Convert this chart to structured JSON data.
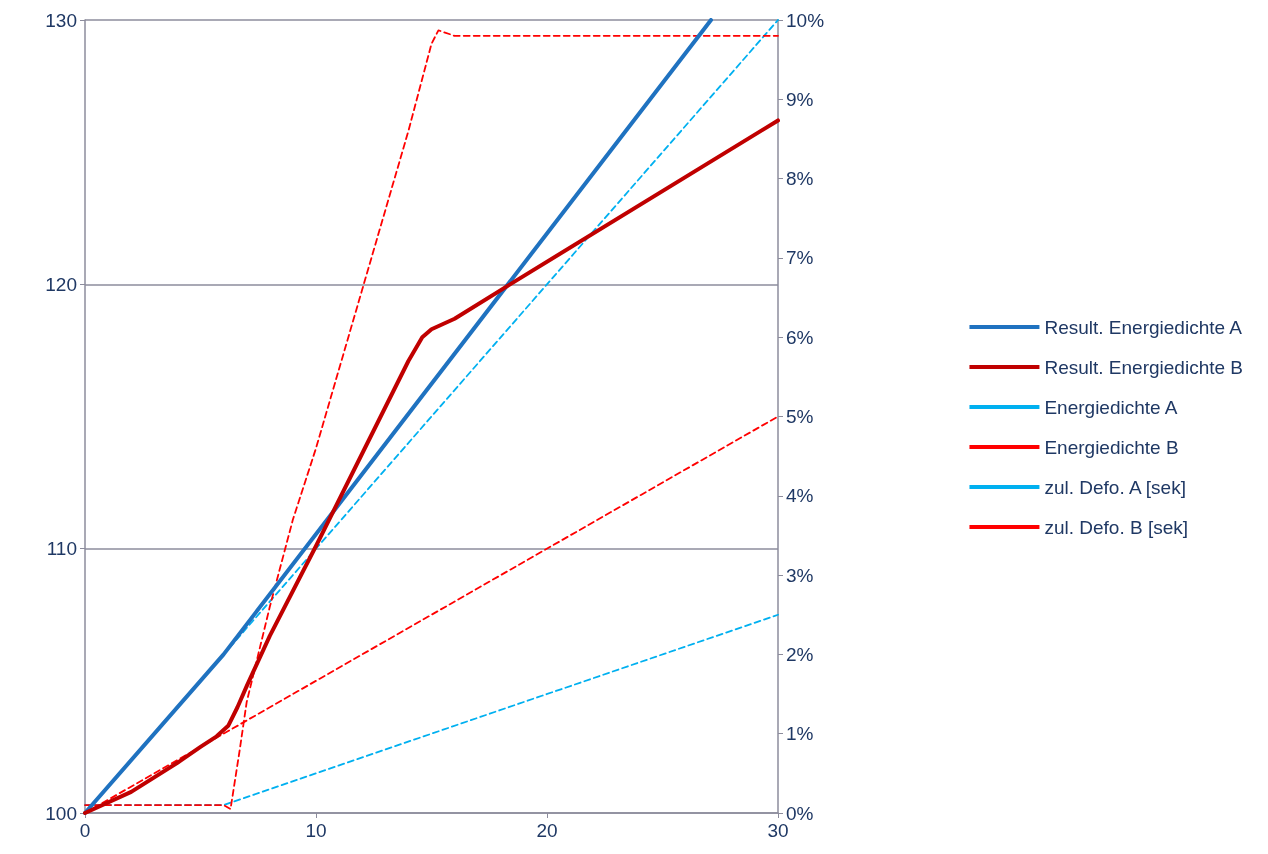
{
  "chart_data": {
    "type": "line",
    "xlim": [
      0,
      30
    ],
    "xticks": [
      0,
      10,
      20,
      30
    ],
    "ylim": [
      100,
      130
    ],
    "yticks": [
      100,
      110,
      120,
      130
    ],
    "y2lim": [
      0,
      10
    ],
    "y2ticks": [
      {
        "value": 0,
        "label": "0%"
      },
      {
        "value": 1,
        "label": "1%"
      },
      {
        "value": 2,
        "label": "2%"
      },
      {
        "value": 3,
        "label": "3%"
      },
      {
        "value": 4,
        "label": "4%"
      },
      {
        "value": 5,
        "label": "5%"
      },
      {
        "value": 6,
        "label": "6%"
      },
      {
        "value": 7,
        "label": "7%"
      },
      {
        "value": 8,
        "label": "8%"
      },
      {
        "value": 9,
        "label": "9%"
      },
      {
        "value": 10,
        "label": "10%"
      }
    ],
    "grid": "y",
    "legend": "right",
    "marker": "none",
    "series": [
      {
        "name": "Result. Energiedichte A",
        "color": "#1f72c0",
        "line_style": "solid",
        "x": [
          0,
          6,
          27.1
        ],
        "values": [
          100,
          106,
          130
        ]
      },
      {
        "name": "Result. Energiedichte B",
        "color": "#c00000",
        "line_style": "solid",
        "x": [
          0,
          2,
          4,
          5,
          5.7,
          6.2,
          6.6,
          7,
          8,
          10,
          12,
          14,
          14.6,
          15,
          15.5,
          16,
          18.4,
          30
        ],
        "values": [
          100,
          100.8,
          101.9,
          102.5,
          102.9,
          103.3,
          104,
          104.8,
          106.7,
          110.1,
          113.6,
          117.1,
          118,
          118.3,
          118.5,
          118.7,
          120,
          126.2
        ]
      },
      {
        "name": "Energiedichte A",
        "color": "#00b0f0",
        "line_style": "dashed",
        "x": [
          0,
          30
        ],
        "values": [
          100,
          130
        ]
      },
      {
        "name": "Energiedichte B",
        "color": "#ff0000",
        "line_style": "dashed",
        "x": [
          0,
          30
        ],
        "values": [
          100,
          115
        ]
      },
      {
        "name": "zul. Defo. A [sek]",
        "color": "#00b0f0",
        "line_style": "dashed",
        "axis": "y2",
        "x": [
          0,
          6,
          30
        ],
        "values": [
          0.1,
          0.1,
          2.5
        ]
      },
      {
        "name": "zul. Defo. B [sek]",
        "color": "#ff0000",
        "line_style": "dashed",
        "axis": "y2",
        "x": [
          0,
          6,
          6.3,
          6.7,
          7,
          8,
          9,
          10,
          12,
          14,
          15,
          15.3,
          16,
          30
        ],
        "values": [
          0.1,
          0.1,
          0.05,
          0.8,
          1.4,
          2.6,
          3.7,
          4.6,
          6.6,
          8.6,
          9.7,
          9.87,
          9.8,
          9.8
        ]
      }
    ]
  }
}
